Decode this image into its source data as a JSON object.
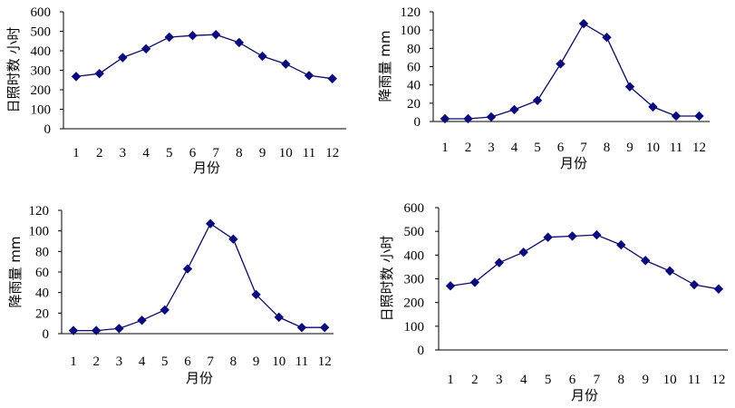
{
  "chart_data": [
    {
      "type": "line",
      "categories": [
        "1",
        "2",
        "3",
        "4",
        "5",
        "6",
        "7",
        "8",
        "9",
        "10",
        "11",
        "12"
      ],
      "values": [
        268,
        283,
        365,
        410,
        470,
        478,
        483,
        442,
        372,
        332,
        273,
        257
      ],
      "xlabel": "月份",
      "ylabel": "日照时数 小时",
      "ylim": [
        0,
        600
      ],
      "yticks": [
        "0",
        "100",
        "200",
        "300",
        "400",
        "500",
        "600"
      ],
      "grid": false
    },
    {
      "type": "line",
      "categories": [
        "1",
        "2",
        "3",
        "4",
        "5",
        "6",
        "7",
        "8",
        "9",
        "10",
        "11",
        "12"
      ],
      "values": [
        3,
        3,
        5,
        13,
        23,
        63,
        107,
        92,
        38,
        16,
        6,
        6
      ],
      "xlabel": "月份",
      "ylabel": "降雨量 mm",
      "ylim": [
        0,
        120
      ],
      "yticks": [
        "0",
        "20",
        "40",
        "60",
        "80",
        "100",
        "120"
      ],
      "grid": false
    },
    {
      "type": "line",
      "categories": [
        "1",
        "2",
        "3",
        "4",
        "5",
        "6",
        "7",
        "8",
        "9",
        "10",
        "11",
        "12"
      ],
      "values": [
        3,
        3,
        5,
        13,
        23,
        63,
        107,
        92,
        38,
        16,
        6,
        6
      ],
      "xlabel": "月份",
      "ylabel": "降雨量 mm",
      "ylim": [
        0,
        120
      ],
      "yticks": [
        "0",
        "20",
        "40",
        "60",
        "80",
        "100",
        "120"
      ],
      "grid": false
    },
    {
      "type": "line",
      "categories": [
        "1",
        "2",
        "3",
        "4",
        "5",
        "6",
        "7",
        "8",
        "9",
        "10",
        "11",
        "12"
      ],
      "values": [
        270,
        285,
        368,
        412,
        475,
        480,
        485,
        443,
        377,
        333,
        275,
        257
      ],
      "xlabel": "月份",
      "ylabel": "日照时数 小时",
      "ylim": [
        0,
        600
      ],
      "yticks": [
        "0",
        "100",
        "200",
        "300",
        "400",
        "500",
        "600"
      ],
      "grid": false
    }
  ]
}
